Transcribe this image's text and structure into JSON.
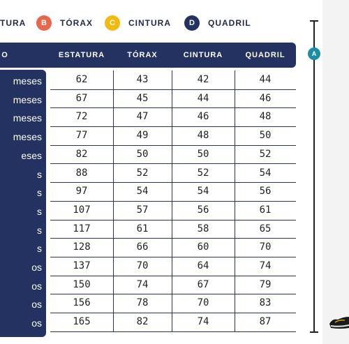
{
  "legend": [
    {
      "badge": "",
      "label": "TURA",
      "color": "#1b8ea3"
    },
    {
      "badge": "B",
      "label": "TÓRAX",
      "color": "#e8674a"
    },
    {
      "badge": "C",
      "label": "CINTURA",
      "color": "#f2b90f"
    },
    {
      "badge": "D",
      "label": "QUADRIL",
      "color": "#233260"
    }
  ],
  "header": {
    "first_col": "O",
    "columns": [
      "ESTATURA",
      "TÓRAX",
      "CINTURA",
      "QUADRIL"
    ]
  },
  "ruler": {
    "badge": "A"
  },
  "rows": [
    {
      "age": "meses",
      "values": [
        "62",
        "43",
        "42",
        "44"
      ]
    },
    {
      "age": "meses",
      "values": [
        "67",
        "45",
        "44",
        "46"
      ]
    },
    {
      "age": "meses",
      "values": [
        "72",
        "47",
        "46",
        "48"
      ]
    },
    {
      "age": "meses",
      "values": [
        "77",
        "49",
        "48",
        "50"
      ]
    },
    {
      "age": "eses",
      "values": [
        "82",
        "50",
        "50",
        "52"
      ]
    },
    {
      "age": "s",
      "values": [
        "88",
        "52",
        "52",
        "54"
      ]
    },
    {
      "age": "s",
      "values": [
        "97",
        "54",
        "54",
        "56"
      ]
    },
    {
      "age": "s",
      "values": [
        "107",
        "57",
        "56",
        "61"
      ]
    },
    {
      "age": "s",
      "values": [
        "117",
        "61",
        "58",
        "65"
      ]
    },
    {
      "age": "s",
      "values": [
        "128",
        "66",
        "60",
        "70"
      ]
    },
    {
      "age": "os",
      "values": [
        "137",
        "70",
        "64",
        "74"
      ]
    },
    {
      "age": "os",
      "values": [
        "150",
        "74",
        "67",
        "79"
      ]
    },
    {
      "age": "os",
      "values": [
        "156",
        "78",
        "70",
        "83"
      ]
    },
    {
      "age": "os",
      "values": [
        "165",
        "82",
        "74",
        "87"
      ]
    }
  ]
}
